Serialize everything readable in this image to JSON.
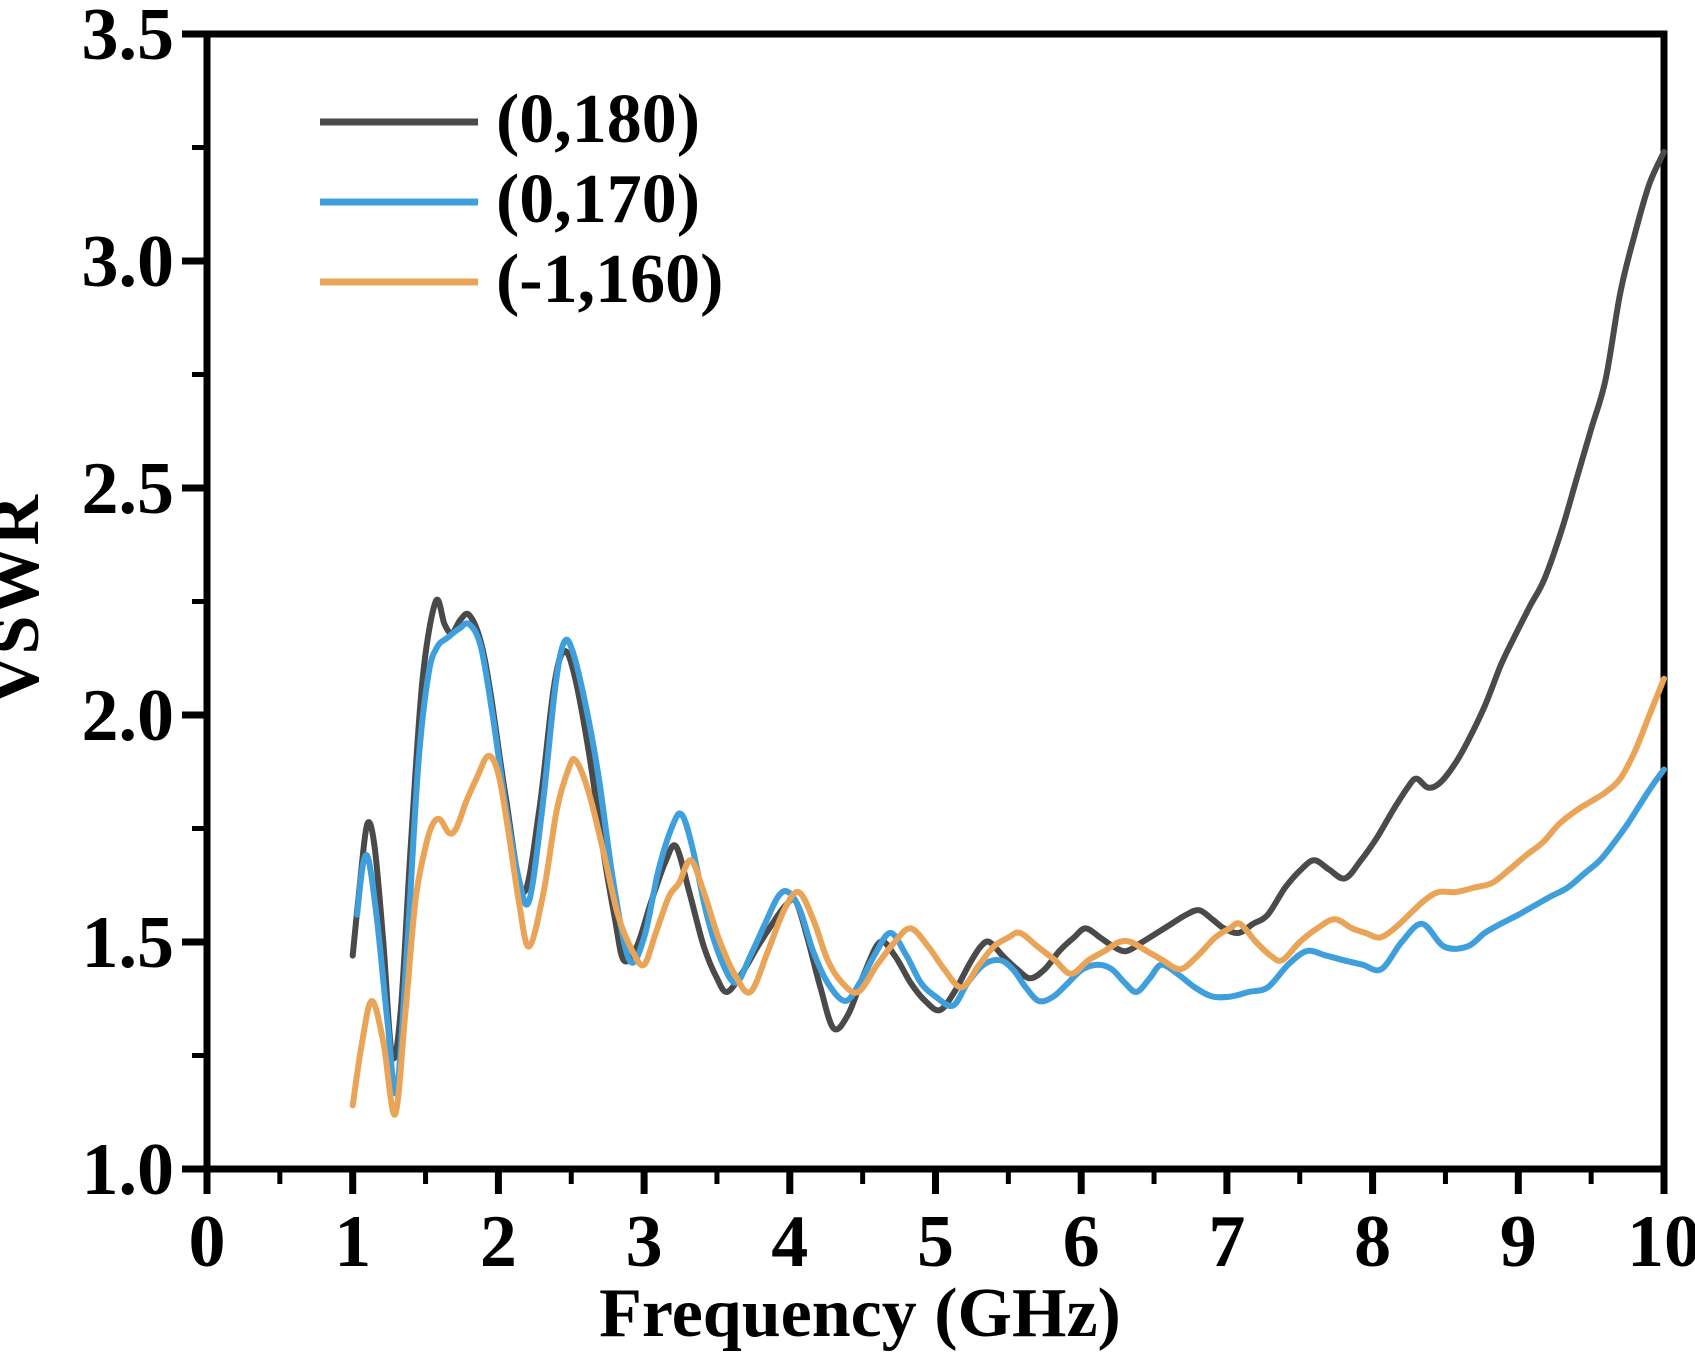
{
  "page": {
    "background": "#ffffff",
    "axis_color": "#000000",
    "tick_label_color": "#000000"
  },
  "chart_data": {
    "type": "line",
    "title": "",
    "xlabel": "Frequency (GHz)",
    "ylabel": "VSWR",
    "xlim": [
      0,
      10
    ],
    "ylim": [
      1.0,
      3.5
    ],
    "grid": false,
    "legend_position": "upper-left-inside",
    "x_major_ticks": [
      0,
      1,
      2,
      3,
      4,
      5,
      6,
      7,
      8,
      9,
      10
    ],
    "x_tick_labels": [
      "0",
      "1",
      "2",
      "3",
      "4",
      "5",
      "6",
      "7",
      "8",
      "9",
      "10"
    ],
    "x_minor_ticks": [
      0.5,
      1.5,
      2.5,
      3.5,
      4.5,
      5.5,
      6.5,
      7.5,
      8.5,
      9.5
    ],
    "y_major_ticks": [
      1.0,
      1.5,
      2.0,
      2.5,
      3.0,
      3.5
    ],
    "y_tick_labels": [
      "1.0",
      "1.5",
      "2.0",
      "2.5",
      "3.0",
      "3.5"
    ],
    "y_minor_ticks": [
      1.25,
      1.75,
      2.25,
      2.75,
      3.25
    ],
    "series": [
      {
        "name": "(0,180)",
        "color": "#4a4a4a",
        "points": [
          [
            1.0,
            1.47
          ],
          [
            1.05,
            1.63
          ],
          [
            1.1,
            1.76
          ],
          [
            1.15,
            1.71
          ],
          [
            1.21,
            1.5
          ],
          [
            1.27,
            1.25
          ],
          [
            1.33,
            1.35
          ],
          [
            1.4,
            1.72
          ],
          [
            1.48,
            2.08
          ],
          [
            1.57,
            2.25
          ],
          [
            1.63,
            2.2
          ],
          [
            1.68,
            2.18
          ],
          [
            1.74,
            2.21
          ],
          [
            1.8,
            2.22
          ],
          [
            1.88,
            2.16
          ],
          [
            1.95,
            2.04
          ],
          [
            2.05,
            1.82
          ],
          [
            2.17,
            1.61
          ],
          [
            2.28,
            1.79
          ],
          [
            2.38,
            2.06
          ],
          [
            2.45,
            2.14
          ],
          [
            2.52,
            2.09
          ],
          [
            2.62,
            1.92
          ],
          [
            2.72,
            1.7
          ],
          [
            2.8,
            1.55
          ],
          [
            2.86,
            1.46
          ],
          [
            2.95,
            1.49
          ],
          [
            3.05,
            1.59
          ],
          [
            3.15,
            1.68
          ],
          [
            3.22,
            1.71
          ],
          [
            3.31,
            1.61
          ],
          [
            3.41,
            1.49
          ],
          [
            3.5,
            1.42
          ],
          [
            3.57,
            1.39
          ],
          [
            3.67,
            1.43
          ],
          [
            3.78,
            1.49
          ],
          [
            3.88,
            1.54
          ],
          [
            3.97,
            1.58
          ],
          [
            4.04,
            1.59
          ],
          [
            4.12,
            1.51
          ],
          [
            4.21,
            1.4
          ],
          [
            4.3,
            1.31
          ],
          [
            4.4,
            1.34
          ],
          [
            4.51,
            1.43
          ],
          [
            4.62,
            1.5
          ],
          [
            4.72,
            1.47
          ],
          [
            4.83,
            1.41
          ],
          [
            4.93,
            1.37
          ],
          [
            5.03,
            1.35
          ],
          [
            5.13,
            1.39
          ],
          [
            5.23,
            1.45
          ],
          [
            5.31,
            1.49
          ],
          [
            5.37,
            1.5
          ],
          [
            5.46,
            1.47
          ],
          [
            5.56,
            1.44
          ],
          [
            5.65,
            1.42
          ],
          [
            5.75,
            1.44
          ],
          [
            5.85,
            1.48
          ],
          [
            5.95,
            1.51
          ],
          [
            6.03,
            1.53
          ],
          [
            6.13,
            1.51
          ],
          [
            6.22,
            1.49
          ],
          [
            6.31,
            1.48
          ],
          [
            6.42,
            1.5
          ],
          [
            6.52,
            1.52
          ],
          [
            6.62,
            1.54
          ],
          [
            6.72,
            1.56
          ],
          [
            6.81,
            1.57
          ],
          [
            6.9,
            1.55
          ],
          [
            6.98,
            1.53
          ],
          [
            7.08,
            1.52
          ],
          [
            7.18,
            1.54
          ],
          [
            7.28,
            1.56
          ],
          [
            7.4,
            1.62
          ],
          [
            7.51,
            1.66
          ],
          [
            7.6,
            1.68
          ],
          [
            7.7,
            1.66
          ],
          [
            7.81,
            1.64
          ],
          [
            7.92,
            1.68
          ],
          [
            8.03,
            1.73
          ],
          [
            8.14,
            1.79
          ],
          [
            8.24,
            1.84
          ],
          [
            8.3,
            1.86
          ],
          [
            8.38,
            1.84
          ],
          [
            8.46,
            1.85
          ],
          [
            8.56,
            1.89
          ],
          [
            8.65,
            1.94
          ],
          [
            8.77,
            2.02
          ],
          [
            8.88,
            2.11
          ],
          [
            8.97,
            2.17
          ],
          [
            9.08,
            2.24
          ],
          [
            9.18,
            2.3
          ],
          [
            9.3,
            2.41
          ],
          [
            9.4,
            2.52
          ],
          [
            9.5,
            2.63
          ],
          [
            9.6,
            2.74
          ],
          [
            9.7,
            2.93
          ],
          [
            9.8,
            3.06
          ],
          [
            9.9,
            3.17
          ],
          [
            10.0,
            3.24
          ]
        ]
      },
      {
        "name": "(0,170)",
        "color": "#3f9fdd",
        "points": [
          [
            1.03,
            1.56
          ],
          [
            1.07,
            1.67
          ],
          [
            1.11,
            1.68
          ],
          [
            1.17,
            1.54
          ],
          [
            1.24,
            1.32
          ],
          [
            1.3,
            1.17
          ],
          [
            1.37,
            1.47
          ],
          [
            1.45,
            1.89
          ],
          [
            1.52,
            2.09
          ],
          [
            1.58,
            2.15
          ],
          [
            1.65,
            2.17
          ],
          [
            1.73,
            2.19
          ],
          [
            1.8,
            2.2
          ],
          [
            1.88,
            2.15
          ],
          [
            1.96,
            2.0
          ],
          [
            2.05,
            1.8
          ],
          [
            2.14,
            1.64
          ],
          [
            2.21,
            1.59
          ],
          [
            2.3,
            1.79
          ],
          [
            2.39,
            2.06
          ],
          [
            2.45,
            2.16
          ],
          [
            2.51,
            2.14
          ],
          [
            2.6,
            2.02
          ],
          [
            2.69,
            1.86
          ],
          [
            2.79,
            1.63
          ],
          [
            2.9,
            1.46
          ],
          [
            3.0,
            1.51
          ],
          [
            3.1,
            1.66
          ],
          [
            3.2,
            1.76
          ],
          [
            3.26,
            1.78
          ],
          [
            3.33,
            1.71
          ],
          [
            3.43,
            1.56
          ],
          [
            3.53,
            1.46
          ],
          [
            3.63,
            1.41
          ],
          [
            3.73,
            1.47
          ],
          [
            3.83,
            1.54
          ],
          [
            3.92,
            1.6
          ],
          [
            3.99,
            1.61
          ],
          [
            4.07,
            1.57
          ],
          [
            4.16,
            1.48
          ],
          [
            4.26,
            1.41
          ],
          [
            4.38,
            1.37
          ],
          [
            4.48,
            1.41
          ],
          [
            4.58,
            1.47
          ],
          [
            4.69,
            1.52
          ],
          [
            4.8,
            1.47
          ],
          [
            4.9,
            1.41
          ],
          [
            5.0,
            1.38
          ],
          [
            5.12,
            1.36
          ],
          [
            5.22,
            1.41
          ],
          [
            5.33,
            1.45
          ],
          [
            5.44,
            1.46
          ],
          [
            5.53,
            1.44
          ],
          [
            5.62,
            1.4
          ],
          [
            5.71,
            1.37
          ],
          [
            5.81,
            1.38
          ],
          [
            5.91,
            1.41
          ],
          [
            6.01,
            1.44
          ],
          [
            6.12,
            1.45
          ],
          [
            6.21,
            1.44
          ],
          [
            6.3,
            1.41
          ],
          [
            6.38,
            1.39
          ],
          [
            6.47,
            1.42
          ],
          [
            6.55,
            1.45
          ],
          [
            6.66,
            1.43
          ],
          [
            6.78,
            1.4
          ],
          [
            6.9,
            1.38
          ],
          [
            7.03,
            1.38
          ],
          [
            7.15,
            1.39
          ],
          [
            7.28,
            1.4
          ],
          [
            7.42,
            1.45
          ],
          [
            7.55,
            1.48
          ],
          [
            7.68,
            1.47
          ],
          [
            7.8,
            1.46
          ],
          [
            7.93,
            1.45
          ],
          [
            8.06,
            1.44
          ],
          [
            8.2,
            1.5
          ],
          [
            8.34,
            1.54
          ],
          [
            8.49,
            1.49
          ],
          [
            8.65,
            1.49
          ],
          [
            8.77,
            1.52
          ],
          [
            8.88,
            1.54
          ],
          [
            9.0,
            1.56
          ],
          [
            9.11,
            1.58
          ],
          [
            9.22,
            1.6
          ],
          [
            9.34,
            1.62
          ],
          [
            9.45,
            1.65
          ],
          [
            9.56,
            1.68
          ],
          [
            9.66,
            1.72
          ],
          [
            9.75,
            1.76
          ],
          [
            9.83,
            1.8
          ],
          [
            9.91,
            1.84
          ],
          [
            10.0,
            1.88
          ]
        ]
      },
      {
        "name": "(-1,160)",
        "color": "#eaa457",
        "points": [
          [
            1.0,
            1.14
          ],
          [
            1.06,
            1.27
          ],
          [
            1.13,
            1.37
          ],
          [
            1.21,
            1.28
          ],
          [
            1.29,
            1.12
          ],
          [
            1.36,
            1.34
          ],
          [
            1.43,
            1.59
          ],
          [
            1.5,
            1.71
          ],
          [
            1.55,
            1.76
          ],
          [
            1.6,
            1.77
          ],
          [
            1.66,
            1.74
          ],
          [
            1.71,
            1.75
          ],
          [
            1.78,
            1.81
          ],
          [
            1.85,
            1.86
          ],
          [
            1.93,
            1.91
          ],
          [
            2.0,
            1.87
          ],
          [
            2.07,
            1.74
          ],
          [
            2.14,
            1.59
          ],
          [
            2.21,
            1.49
          ],
          [
            2.31,
            1.61
          ],
          [
            2.4,
            1.79
          ],
          [
            2.48,
            1.88
          ],
          [
            2.53,
            1.9
          ],
          [
            2.62,
            1.83
          ],
          [
            2.72,
            1.7
          ],
          [
            2.82,
            1.56
          ],
          [
            2.92,
            1.48
          ],
          [
            3.0,
            1.45
          ],
          [
            3.08,
            1.52
          ],
          [
            3.17,
            1.6
          ],
          [
            3.24,
            1.63
          ],
          [
            3.32,
            1.68
          ],
          [
            3.41,
            1.61
          ],
          [
            3.51,
            1.51
          ],
          [
            3.62,
            1.43
          ],
          [
            3.73,
            1.39
          ],
          [
            3.85,
            1.48
          ],
          [
            3.96,
            1.57
          ],
          [
            4.06,
            1.61
          ],
          [
            4.16,
            1.55
          ],
          [
            4.26,
            1.46
          ],
          [
            4.36,
            1.41
          ],
          [
            4.47,
            1.39
          ],
          [
            4.6,
            1.45
          ],
          [
            4.72,
            1.5
          ],
          [
            4.83,
            1.53
          ],
          [
            4.95,
            1.49
          ],
          [
            5.06,
            1.44
          ],
          [
            5.18,
            1.4
          ],
          [
            5.3,
            1.45
          ],
          [
            5.4,
            1.49
          ],
          [
            5.5,
            1.51
          ],
          [
            5.58,
            1.52
          ],
          [
            5.7,
            1.49
          ],
          [
            5.82,
            1.46
          ],
          [
            5.93,
            1.43
          ],
          [
            6.05,
            1.46
          ],
          [
            6.16,
            1.48
          ],
          [
            6.26,
            1.5
          ],
          [
            6.34,
            1.5
          ],
          [
            6.45,
            1.48
          ],
          [
            6.56,
            1.46
          ],
          [
            6.68,
            1.44
          ],
          [
            6.8,
            1.47
          ],
          [
            6.92,
            1.51
          ],
          [
            7.02,
            1.53
          ],
          [
            7.09,
            1.54
          ],
          [
            7.2,
            1.5
          ],
          [
            7.3,
            1.47
          ],
          [
            7.38,
            1.46
          ],
          [
            7.5,
            1.5
          ],
          [
            7.62,
            1.53
          ],
          [
            7.74,
            1.55
          ],
          [
            7.86,
            1.53
          ],
          [
            7.95,
            1.52
          ],
          [
            8.05,
            1.51
          ],
          [
            8.15,
            1.53
          ],
          [
            8.25,
            1.56
          ],
          [
            8.35,
            1.59
          ],
          [
            8.45,
            1.61
          ],
          [
            8.57,
            1.61
          ],
          [
            8.7,
            1.62
          ],
          [
            8.82,
            1.63
          ],
          [
            8.94,
            1.66
          ],
          [
            9.05,
            1.69
          ],
          [
            9.17,
            1.72
          ],
          [
            9.28,
            1.76
          ],
          [
            9.4,
            1.79
          ],
          [
            9.5,
            1.81
          ],
          [
            9.6,
            1.83
          ],
          [
            9.7,
            1.86
          ],
          [
            9.8,
            1.92
          ],
          [
            9.9,
            2.0
          ],
          [
            10.0,
            2.08
          ]
        ]
      }
    ]
  }
}
